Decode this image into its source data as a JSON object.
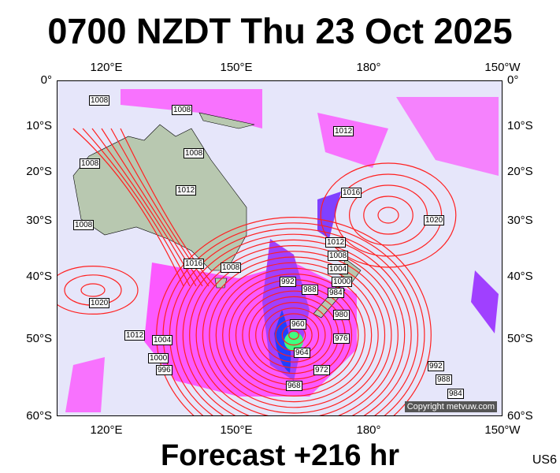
{
  "title": "0700 NZDT Thu 23 Oct 2025",
  "forecast": "Forecast +216 hr",
  "model_code": "US6",
  "copyright": "Copyright metvuw.com",
  "lon_labels": [
    "120°E",
    "150°E",
    "180°",
    "150°W"
  ],
  "lat_labels": [
    "0°",
    "10°S",
    "20°S",
    "30°S",
    "40°S",
    "50°S",
    "60°S"
  ],
  "isobar_labels": [
    "1008",
    "1008",
    "1008",
    "1008",
    "1008",
    "1012",
    "1012",
    "1016",
    "1020",
    "1016",
    "1012",
    "1008",
    "1004",
    "1000",
    "992",
    "988",
    "984",
    "980",
    "960",
    "964",
    "968",
    "972",
    "976",
    "1020",
    "1012",
    "1004",
    "1000",
    "996",
    "992",
    "988",
    "984",
    "1008"
  ],
  "colors": {
    "ocean": "#e6e6fa",
    "land": "#b8c8b0",
    "isobar": "#ff2020",
    "rain": "#ff00ff",
    "heavy_rain": "#3030ff"
  }
}
